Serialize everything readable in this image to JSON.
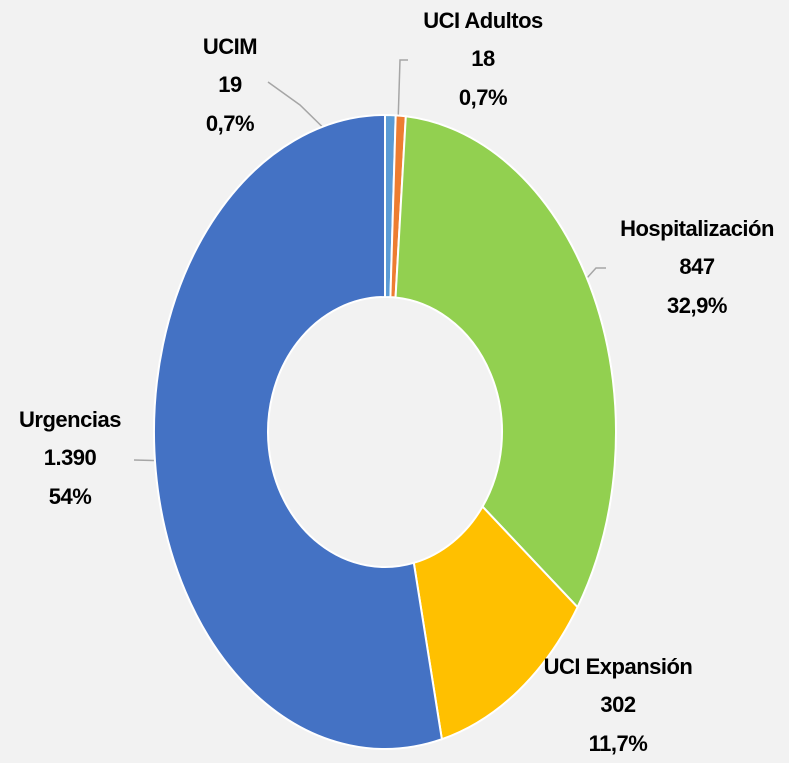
{
  "chart_data": {
    "type": "donut",
    "categories": [
      "UCIM",
      "UCI Adultos",
      "Hospitalización",
      "UCI Expansión",
      "Urgencias"
    ],
    "values": [
      19,
      18,
      847,
      302,
      1390
    ],
    "value_labels": [
      "19",
      "18",
      "847",
      "302",
      "1.390"
    ],
    "percents": [
      0.7,
      0.7,
      32.9,
      11.7,
      54
    ],
    "percent_labels": [
      "0,7%",
      "0,7%",
      "32,9%",
      "11,7%",
      "54%"
    ],
    "colors": [
      "#5b9bd5",
      "#ed7d31",
      "#92d050",
      "#ffc000",
      "#4472c4"
    ]
  }
}
